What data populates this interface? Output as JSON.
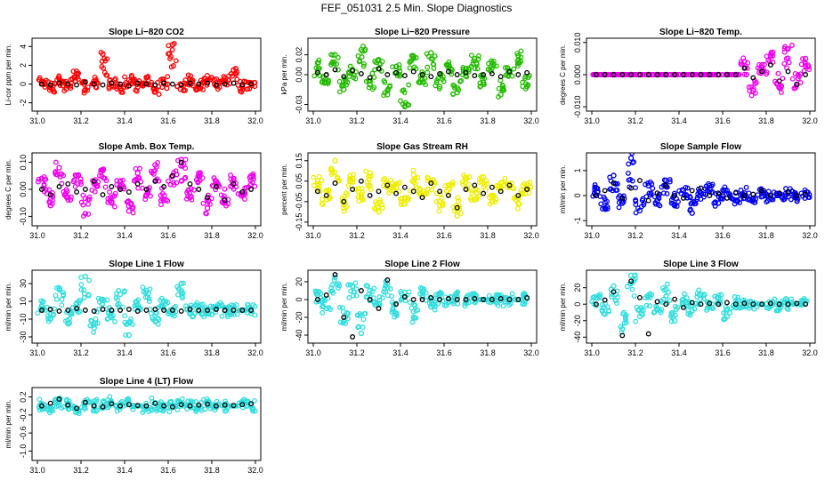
{
  "page": {
    "title": "FEF_051031  2.5 Min. Slope Diagnostics"
  },
  "chart_data": [
    {
      "type": "scatter",
      "title": "Slope Li−820 CO2",
      "ylabel": "Li-cor ppm per min.",
      "color": "#ff0000",
      "xlim": [
        31.0,
        32.0
      ],
      "ylim": [
        -2.6,
        4.6
      ],
      "xticks": [
        "31.0",
        "31.2",
        "31.4",
        "31.6",
        "31.8",
        "32.0"
      ],
      "yticks": [
        "-2",
        "0",
        "2",
        "4"
      ],
      "x": [
        31.02,
        31.06,
        31.1,
        31.14,
        31.18,
        31.22,
        31.26,
        31.3,
        31.34,
        31.38,
        31.42,
        31.46,
        31.5,
        31.54,
        31.58,
        31.62,
        31.66,
        31.7,
        31.74,
        31.78,
        31.82,
        31.86,
        31.9,
        31.94,
        31.98
      ],
      "y": [
        0.2,
        -0.4,
        0.6,
        -0.2,
        1.1,
        -0.6,
        0.3,
        3.2,
        0.1,
        -0.5,
        0.4,
        -0.3,
        0.7,
        -0.8,
        0.2,
        4.2,
        -0.1,
        0.5,
        -0.4,
        0.3,
        -0.2,
        0.6,
        1.5,
        -0.3,
        0.1
      ],
      "ref_y": [
        0.0,
        -0.1,
        0.1,
        0.0,
        -0.1,
        0.2,
        0.0,
        -0.1,
        0.1,
        0.0,
        -0.2,
        0.1,
        0.0,
        -0.1,
        0.1,
        0.0,
        -0.1,
        0.1,
        0.0,
        0.1,
        -0.1,
        0.0,
        0.1,
        -0.1,
        0.0
      ]
    },
    {
      "type": "scatter",
      "title": "Slope Li−820 Pressure",
      "ylabel": "kPa per min.",
      "color": "#22bb00",
      "xlim": [
        31.0,
        32.0
      ],
      "ylim": [
        -0.034,
        0.034
      ],
      "xticks": [
        "31.0",
        "31.2",
        "31.4",
        "31.6",
        "31.8",
        "32.0"
      ],
      "yticks": [
        "-0.03",
        "0.00",
        "0.02"
      ],
      "x": [
        31.02,
        31.06,
        31.1,
        31.14,
        31.18,
        31.22,
        31.26,
        31.3,
        31.34,
        31.38,
        31.42,
        31.46,
        31.5,
        31.54,
        31.58,
        31.62,
        31.66,
        31.7,
        31.74,
        31.78,
        31.82,
        31.86,
        31.9,
        31.94,
        31.98
      ],
      "y": [
        0.012,
        -0.008,
        0.02,
        -0.015,
        0.005,
        0.025,
        -0.01,
        0.015,
        -0.02,
        0.008,
        -0.032,
        0.018,
        -0.005,
        0.022,
        -0.012,
        0.01,
        -0.018,
        0.006,
        0.016,
        -0.008,
        0.012,
        -0.02,
        0.004,
        0.019,
        -0.012
      ],
      "ref_y": [
        0.002,
        0.0,
        0.005,
        -0.002,
        0.004,
        0.001,
        -0.003,
        0.006,
        0.0,
        0.002,
        -0.001,
        0.003,
        0.0,
        -0.002,
        0.001,
        0.003,
        0.0,
        0.002,
        -0.001,
        0.0,
        0.001,
        -0.002,
        0.003,
        0.0,
        0.002
      ]
    },
    {
      "type": "scatter",
      "title": "Slope Li−820 Temp.",
      "ylabel": "degrees C per min.",
      "color": "#ee00ee",
      "xlim": [
        31.0,
        32.0
      ],
      "ylim": [
        -0.0105,
        0.0105
      ],
      "xticks": [
        "31.0",
        "31.2",
        "31.4",
        "31.6",
        "31.8",
        "32.0"
      ],
      "yticks": [
        "-0.010",
        "0.000",
        "0.010"
      ],
      "x": [
        31.02,
        31.06,
        31.1,
        31.14,
        31.18,
        31.22,
        31.26,
        31.3,
        31.34,
        31.38,
        31.42,
        31.46,
        31.5,
        31.54,
        31.58,
        31.62,
        31.66,
        31.7,
        31.74,
        31.78,
        31.82,
        31.86,
        31.9,
        31.94,
        31.98
      ],
      "y": [
        0.0,
        0.0,
        0.0,
        0.0,
        0.0,
        0.0,
        0.0,
        0.0,
        0.0,
        0.0,
        0.0,
        0.0,
        0.0,
        0.0,
        0.0,
        0.0,
        0.0,
        0.004,
        -0.005,
        0.003,
        0.006,
        -0.004,
        0.008,
        -0.003,
        0.005
      ],
      "ref_y": [
        0.0,
        0.0,
        0.0,
        0.0,
        0.0,
        0.0,
        0.0,
        0.0,
        0.0,
        0.0,
        0.0,
        0.0,
        0.0,
        0.0,
        0.0,
        0.0,
        0.0,
        0.002,
        -0.001,
        0.001,
        0.003,
        -0.002,
        0.001,
        -0.003,
        0.0
      ]
    },
    {
      "type": "scatter",
      "title": "Slope Amb. Box Temp.",
      "ylabel": "degrees C per min.",
      "color": "#ee00ee",
      "xlim": [
        31.0,
        32.0
      ],
      "ylim": [
        -0.125,
        0.125
      ],
      "xticks": [
        "31.0",
        "31.2",
        "31.4",
        "31.6",
        "31.8",
        "32.0"
      ],
      "yticks": [
        "-0.10",
        "0.00",
        "0.10"
      ],
      "x": [
        31.02,
        31.06,
        31.1,
        31.14,
        31.18,
        31.22,
        31.26,
        31.3,
        31.34,
        31.38,
        31.42,
        31.46,
        31.5,
        31.54,
        31.58,
        31.62,
        31.66,
        31.7,
        31.74,
        31.78,
        31.82,
        31.86,
        31.9,
        31.94,
        31.98
      ],
      "y": [
        0.04,
        -0.06,
        0.08,
        -0.03,
        0.05,
        -0.09,
        0.02,
        0.07,
        -0.05,
        0.03,
        -0.08,
        0.06,
        -0.02,
        0.09,
        -0.04,
        0.05,
        0.11,
        -0.03,
        0.06,
        -0.07,
        0.03,
        -0.05,
        0.04,
        -0.02,
        0.05
      ],
      "ref_y": [
        0.0,
        -0.02,
        0.01,
        0.02,
        -0.01,
        0.0,
        0.03,
        -0.02,
        0.01,
        0.0,
        -0.01,
        0.02,
        0.0,
        0.03,
        0.01,
        0.05,
        0.1,
        0.02,
        0.0,
        -0.03,
        0.01,
        -0.04,
        0.02,
        -0.01,
        0.0
      ]
    },
    {
      "type": "scatter",
      "title": "Slope Gas Stream RH",
      "ylabel": "percent per min.",
      "color": "#eeee00",
      "xlim": [
        31.0,
        32.0
      ],
      "ylim": [
        -0.155,
        0.175
      ],
      "xticks": [
        "31.0",
        "31.2",
        "31.4",
        "31.6",
        "31.8",
        "32.0"
      ],
      "yticks": [
        "-0.15",
        "-0.05",
        "0.05",
        "0.15"
      ],
      "x": [
        31.02,
        31.06,
        31.1,
        31.14,
        31.18,
        31.22,
        31.26,
        31.3,
        31.34,
        31.38,
        31.42,
        31.46,
        31.5,
        31.54,
        31.58,
        31.62,
        31.66,
        31.7,
        31.74,
        31.78,
        31.82,
        31.86,
        31.9,
        31.94,
        31.98
      ],
      "y": [
        0.05,
        -0.04,
        0.15,
        -0.08,
        0.06,
        -0.03,
        0.09,
        -0.1,
        0.04,
        0.02,
        -0.06,
        0.08,
        -0.02,
        0.05,
        -0.07,
        0.03,
        -0.12,
        0.06,
        -0.04,
        0.07,
        -0.05,
        0.04,
        0.03,
        -0.06,
        0.02
      ],
      "ref_y": [
        0.0,
        -0.02,
        0.04,
        -0.05,
        0.01,
        0.05,
        -0.02,
        0.0,
        0.03,
        -0.01,
        0.02,
        0.0,
        -0.03,
        0.04,
        0.0,
        -0.02,
        -0.08,
        0.01,
        0.03,
        -0.01,
        0.02,
        0.0,
        0.03,
        -0.02,
        0.01
      ]
    },
    {
      "type": "scatter",
      "title": "Slope Sample Flow",
      "ylabel": "ml/min per min.",
      "color": "#0000ee",
      "xlim": [
        31.0,
        32.0
      ],
      "ylim": [
        -1.1,
        1.6
      ],
      "xticks": [
        "31.0",
        "31.2",
        "31.4",
        "31.6",
        "31.8",
        "32.0"
      ],
      "yticks": [
        "-1",
        "0",
        "1"
      ],
      "x": [
        31.02,
        31.06,
        31.1,
        31.14,
        31.18,
        31.22,
        31.26,
        31.3,
        31.34,
        31.38,
        31.42,
        31.46,
        31.5,
        31.54,
        31.58,
        31.62,
        31.66,
        31.7,
        31.74,
        31.78,
        31.82,
        31.86,
        31.9,
        31.94,
        31.98
      ],
      "y": [
        0.3,
        -0.5,
        0.8,
        -0.3,
        1.5,
        -0.6,
        0.4,
        -0.2,
        0.6,
        -0.4,
        0.2,
        -0.7,
        0.1,
        0.4,
        -0.3,
        0.2,
        -0.2,
        0.1,
        -0.1,
        0.15,
        -0.1,
        0.05,
        0.1,
        -0.05,
        0.05
      ],
      "ref_y": [
        0.0,
        0.2,
        0.5,
        -0.1,
        0.3,
        0.6,
        -0.2,
        0.1,
        0.4,
        0.0,
        -0.1,
        0.2,
        0.3,
        0.0,
        0.1,
        -0.1,
        0.1,
        0.0,
        0.05,
        0.2,
        0.0,
        0.1,
        0.15,
        0.0,
        0.05
      ]
    },
    {
      "type": "scatter",
      "title": "Slope Line 1 Flow",
      "ylabel": "ml/min per min.",
      "color": "#33dddd",
      "xlim": [
        31.0,
        32.0
      ],
      "ylim": [
        -34,
        42
      ],
      "xticks": [
        "31.0",
        "31.2",
        "31.4",
        "31.6",
        "31.8",
        "32.0"
      ],
      "yticks": [
        "-30",
        "-10",
        "10",
        "30"
      ],
      "x": [
        31.02,
        31.06,
        31.1,
        31.14,
        31.18,
        31.22,
        31.26,
        31.3,
        31.34,
        31.38,
        31.42,
        31.46,
        31.5,
        31.54,
        31.58,
        31.62,
        31.66,
        31.7,
        31.74,
        31.78,
        31.82,
        31.86,
        31.9,
        31.94,
        31.98
      ],
      "y": [
        5,
        -10,
        25,
        -15,
        8,
        38,
        -20,
        12,
        -8,
        18,
        -28,
        6,
        22,
        -12,
        10,
        -5,
        30,
        -3,
        4,
        -2,
        3,
        -1,
        2,
        0,
        1
      ],
      "ref_y": [
        0,
        1,
        -1,
        0,
        2,
        0,
        -1,
        1,
        0,
        0,
        1,
        -1,
        0,
        1,
        0,
        0,
        -1,
        1,
        0,
        0,
        1,
        0,
        0,
        0,
        0
      ]
    },
    {
      "type": "scatter",
      "title": "Slope Line 2 Flow",
      "ylabel": "ml/min per min.",
      "color": "#33dddd",
      "xlim": [
        31.0,
        32.0
      ],
      "ylim": [
        -46,
        30
      ],
      "xticks": [
        "31.0",
        "31.2",
        "31.4",
        "31.6",
        "31.8",
        "32.0"
      ],
      "yticks": [
        "-40",
        "-20",
        "0",
        "20"
      ],
      "x": [
        31.02,
        31.06,
        31.1,
        31.14,
        31.18,
        31.22,
        31.26,
        31.3,
        31.34,
        31.38,
        31.42,
        31.46,
        31.5,
        31.54,
        31.58,
        31.62,
        31.66,
        31.7,
        31.74,
        31.78,
        31.82,
        31.86,
        31.9,
        31.94,
        31.98
      ],
      "y": [
        5,
        -10,
        25,
        -25,
        15,
        -38,
        10,
        -5,
        18,
        -15,
        8,
        -20,
        12,
        -8,
        5,
        -3,
        2,
        -1,
        2,
        0,
        1,
        -1,
        1,
        0,
        1
      ],
      "ref_y": [
        0,
        5,
        28,
        -20,
        -42,
        10,
        0,
        -10,
        22,
        -5,
        3,
        0,
        0,
        2,
        0,
        1,
        0,
        0,
        1,
        0,
        0,
        1,
        0,
        0,
        2
      ]
    },
    {
      "type": "scatter",
      "title": "Slope Line 3 Flow",
      "ylabel": "ml/min per min.",
      "color": "#33dddd",
      "xlim": [
        31.0,
        32.0
      ],
      "ylim": [
        -44,
        38
      ],
      "xticks": [
        "31.0",
        "31.2",
        "31.4",
        "31.6",
        "31.8",
        "32.0"
      ],
      "yticks": [
        "-40",
        "-20",
        "0",
        "20"
      ],
      "x": [
        31.02,
        31.06,
        31.1,
        31.14,
        31.18,
        31.22,
        31.26,
        31.3,
        31.34,
        31.38,
        31.42,
        31.46,
        31.5,
        31.54,
        31.58,
        31.62,
        31.66,
        31.7,
        31.74,
        31.78,
        31.82,
        31.86,
        31.9,
        31.94,
        31.98
      ],
      "y": [
        8,
        -12,
        22,
        -30,
        35,
        -15,
        10,
        -5,
        18,
        -20,
        6,
        -8,
        12,
        -4,
        8,
        -15,
        3,
        -2,
        1,
        0,
        1,
        -1,
        1,
        0,
        1
      ],
      "ref_y": [
        0,
        5,
        15,
        -38,
        28,
        8,
        -36,
        3,
        0,
        6,
        -4,
        2,
        0,
        1,
        0,
        2,
        0,
        1,
        0,
        0,
        1,
        0,
        0,
        1,
        0
      ]
    },
    {
      "type": "scatter",
      "title": "Slope Line 4 (LT) Flow",
      "ylabel": "ml/min per min.",
      "color": "#33dddd",
      "xlim": [
        31.0,
        32.0
      ],
      "ylim": [
        -1.15,
        0.35
      ],
      "xticks": [
        "31.0",
        "31.2",
        "31.4",
        "31.6",
        "31.8",
        "32.0"
      ],
      "yticks": [
        "-1.0",
        "-0.6",
        "-0.2",
        "0.2"
      ],
      "x": [
        31.02,
        31.06,
        31.1,
        31.14,
        31.18,
        31.22,
        31.26,
        31.3,
        31.34,
        31.38,
        31.42,
        31.46,
        31.5,
        31.54,
        31.58,
        31.62,
        31.66,
        31.7,
        31.74,
        31.78,
        31.82,
        31.86,
        31.9,
        31.94,
        31.98
      ],
      "y": [
        0.05,
        -0.03,
        0.12,
        0.02,
        -0.08,
        0.06,
        0.01,
        -0.04,
        0.08,
        -0.02,
        0.05,
        0.0,
        -0.05,
        0.07,
        0.01,
        -0.03,
        0.04,
        0.02,
        -0.02,
        0.05,
        -0.01,
        0.03,
        0.0,
        0.04,
        0.02
      ],
      "ref_y": [
        0.0,
        0.06,
        0.15,
        0.02,
        -0.05,
        0.08,
        0.0,
        -0.02,
        0.05,
        0.0,
        0.03,
        0.01,
        0.0,
        0.06,
        0.0,
        -0.02,
        0.03,
        0.0,
        0.02,
        0.04,
        0.0,
        0.02,
        0.01,
        0.03,
        0.05
      ]
    }
  ]
}
